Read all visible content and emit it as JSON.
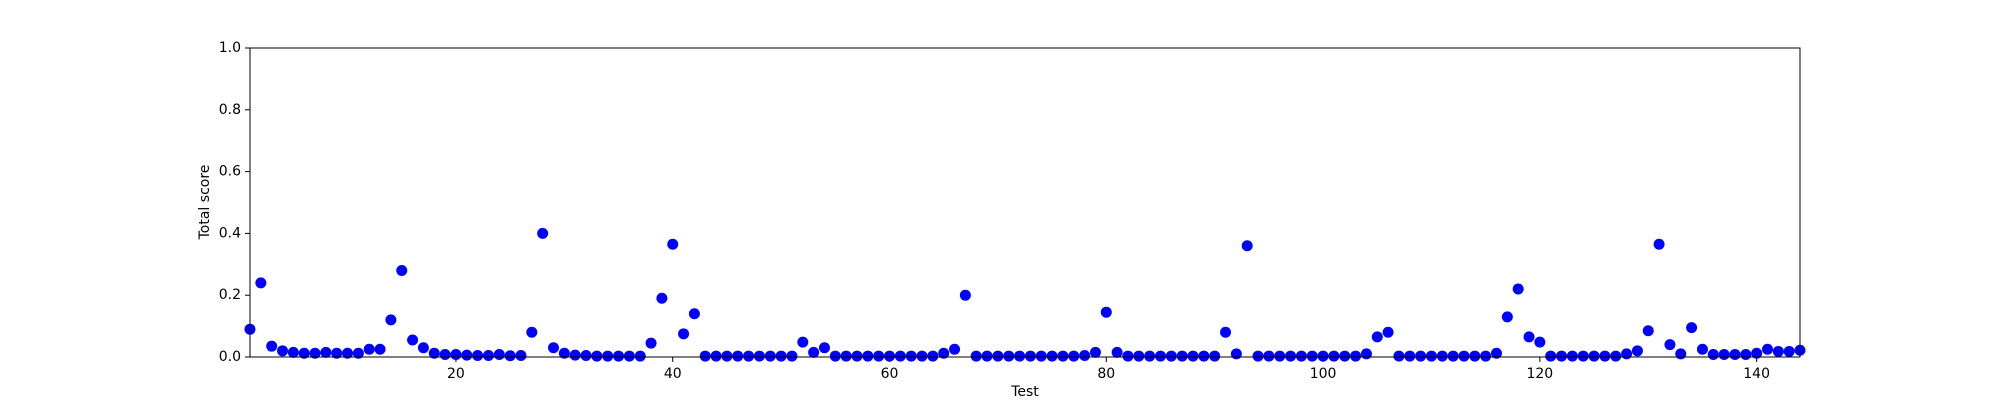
{
  "chart_data": {
    "type": "scatter",
    "xlabel": "Test",
    "ylabel": "Total score",
    "color": "#0000ff",
    "x": [
      1,
      2,
      3,
      4,
      5,
      6,
      7,
      8,
      9,
      10,
      11,
      12,
      13,
      14,
      15,
      16,
      17,
      18,
      19,
      20,
      21,
      22,
      23,
      24,
      25,
      26,
      27,
      28,
      29,
      30,
      31,
      32,
      33,
      34,
      35,
      36,
      37,
      38,
      39,
      40,
      41,
      42,
      43,
      44,
      45,
      46,
      47,
      48,
      49,
      50,
      51,
      52,
      53,
      54,
      55,
      56,
      57,
      58,
      59,
      60,
      61,
      62,
      63,
      64,
      65,
      66,
      67,
      68,
      69,
      70,
      71,
      72,
      73,
      74,
      75,
      76,
      77,
      78,
      79,
      80,
      81,
      82,
      83,
      84,
      85,
      86,
      87,
      88,
      89,
      90,
      91,
      92,
      93,
      94,
      95,
      96,
      97,
      98,
      99,
      100,
      101,
      102,
      103,
      104,
      105,
      106,
      107,
      108,
      109,
      110,
      111,
      112,
      113,
      114,
      115,
      116,
      117,
      118,
      119,
      120,
      121,
      122,
      123,
      124,
      125,
      126,
      127,
      128,
      129,
      130,
      131,
      132,
      133,
      134,
      135,
      136,
      137,
      138,
      139,
      140,
      141,
      142,
      143,
      144
    ],
    "values": [
      0.09,
      0.24,
      0.035,
      0.02,
      0.015,
      0.012,
      0.012,
      0.015,
      0.012,
      0.012,
      0.012,
      0.025,
      0.025,
      0.12,
      0.28,
      0.055,
      0.03,
      0.012,
      0.008,
      0.008,
      0.006,
      0.005,
      0.005,
      0.008,
      0.004,
      0.005,
      0.08,
      0.4,
      0.03,
      0.012,
      0.006,
      0.005,
      0.003,
      0.003,
      0.003,
      0.003,
      0.003,
      0.045,
      0.19,
      0.365,
      0.075,
      0.14,
      0.003,
      0.003,
      0.003,
      0.003,
      0.003,
      0.003,
      0.003,
      0.003,
      0.003,
      0.048,
      0.015,
      0.03,
      0.003,
      0.003,
      0.003,
      0.003,
      0.003,
      0.003,
      0.003,
      0.003,
      0.003,
      0.003,
      0.012,
      0.025,
      0.2,
      0.003,
      0.003,
      0.003,
      0.003,
      0.003,
      0.003,
      0.003,
      0.003,
      0.003,
      0.003,
      0.005,
      0.015,
      0.145,
      0.015,
      0.003,
      0.003,
      0.003,
      0.003,
      0.003,
      0.003,
      0.003,
      0.003,
      0.003,
      0.08,
      0.01,
      0.36,
      0.003,
      0.003,
      0.003,
      0.003,
      0.003,
      0.003,
      0.003,
      0.003,
      0.003,
      0.003,
      0.01,
      0.065,
      0.08,
      0.003,
      0.003,
      0.003,
      0.003,
      0.003,
      0.003,
      0.003,
      0.003,
      0.003,
      0.012,
      0.13,
      0.22,
      0.065,
      0.048,
      0.003,
      0.003,
      0.003,
      0.003,
      0.003,
      0.003,
      0.003,
      0.01,
      0.02,
      0.085,
      0.365,
      0.04,
      0.01,
      0.095,
      0.025,
      0.008,
      0.008,
      0.008,
      0.008,
      0.012,
      0.025,
      0.018,
      0.018,
      0.022
    ],
    "xlim": [
      1,
      144
    ],
    "xticks": [
      20,
      40,
      60,
      80,
      100,
      120,
      140
    ],
    "ylim": [
      0,
      1
    ],
    "yticks": [
      {
        "value": 0,
        "label": "0.0"
      },
      0.2,
      0.4,
      0.6,
      0.8,
      {
        "value": 1,
        "label": "1.0"
      }
    ]
  }
}
